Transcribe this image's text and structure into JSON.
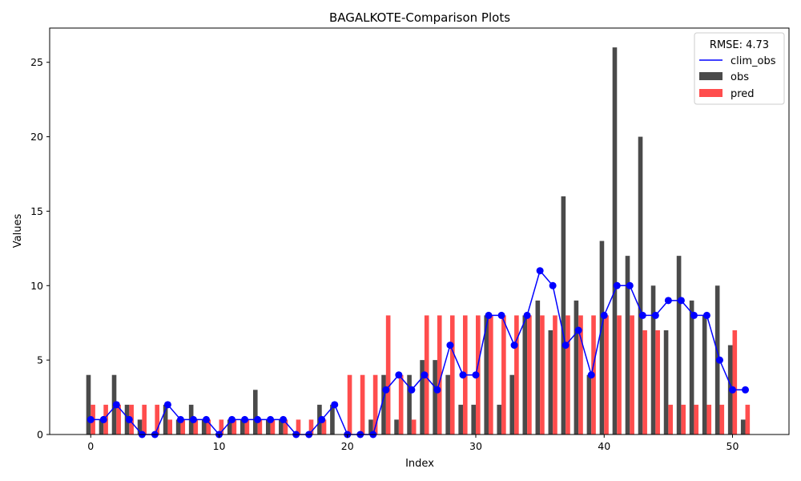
{
  "chart_data": {
    "type": "bar",
    "title": "BAGALKOTE-Comparison Plots",
    "xlabel": "Index",
    "ylabel": "Values",
    "xlim": [
      -3.2,
      54.4
    ],
    "ylim": [
      0,
      27.3
    ],
    "xticks": [
      0,
      10,
      20,
      30,
      40,
      50
    ],
    "yticks": [
      0,
      5,
      10,
      15,
      20,
      25
    ],
    "grid": false,
    "legend_position": "upper right",
    "legend_title": "RMSE: 4.73",
    "x": [
      0,
      1,
      2,
      3,
      4,
      5,
      6,
      7,
      8,
      9,
      10,
      11,
      12,
      13,
      14,
      15,
      16,
      17,
      18,
      19,
      20,
      21,
      22,
      23,
      24,
      25,
      26,
      27,
      28,
      29,
      30,
      31,
      32,
      33,
      34,
      35,
      36,
      37,
      38,
      39,
      40,
      41,
      42,
      43,
      44,
      45,
      46,
      47,
      48,
      49,
      50,
      51
    ],
    "series": [
      {
        "name": "clim_obs",
        "kind": "line",
        "color": "#0000ff",
        "values": [
          1,
          1,
          2,
          1,
          0,
          0,
          2,
          1,
          1,
          1,
          0,
          1,
          1,
          1,
          1,
          1,
          0,
          0,
          1,
          2,
          0,
          0,
          0,
          3,
          4,
          3,
          4,
          3,
          6,
          4,
          4,
          8,
          8,
          6,
          8,
          11,
          10,
          6,
          7,
          4,
          8,
          10,
          10,
          8,
          8,
          9,
          9,
          8,
          8,
          5,
          3,
          3
        ]
      },
      {
        "name": "obs",
        "kind": "bar",
        "color": "#4a4a4a",
        "values": [
          4,
          1,
          4,
          2,
          1,
          0,
          2,
          1,
          2,
          1,
          0,
          1,
          1,
          3,
          1,
          1,
          0,
          0,
          2,
          2,
          0,
          0,
          1,
          4,
          1,
          4,
          5,
          5,
          4,
          2,
          2,
          8,
          2,
          4,
          8,
          9,
          7,
          16,
          9,
          4,
          13,
          26,
          12,
          20,
          10,
          7,
          12,
          9,
          8,
          10,
          6,
          1
        ]
      },
      {
        "name": "pred",
        "kind": "bar",
        "color": "#ff4d4d",
        "values": [
          2,
          2,
          2,
          2,
          2,
          2,
          1,
          1,
          1,
          1,
          1,
          1,
          1,
          1,
          1,
          1,
          1,
          1,
          1,
          0,
          4,
          4,
          4,
          8,
          4,
          1,
          8,
          8,
          8,
          8,
          8,
          8,
          8,
          8,
          8,
          8,
          8,
          8,
          8,
          8,
          8,
          8,
          8,
          7,
          7,
          2,
          2,
          2,
          2,
          2,
          7,
          2
        ]
      }
    ]
  }
}
